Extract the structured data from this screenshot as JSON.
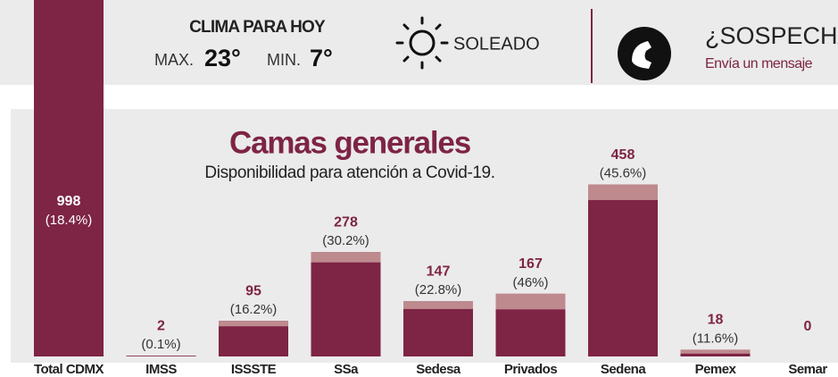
{
  "header": {
    "weather_title": "CLIMA PARA HOY",
    "max_label": "MAX.",
    "max_value": "23°",
    "min_label": "MIN.",
    "min_value": "7°",
    "condition": "SOLEADO",
    "promo_title": "¿SOSPECHA",
    "promo_text": "Envía un mensaje"
  },
  "chart_data": {
    "type": "bar",
    "title": "Camas generales",
    "subtitle": "Disponibilidad para atención a Covid-19.",
    "categories": [
      "Total CDMX",
      "IMSS",
      "ISSSTE",
      "SSa",
      "Sedesa",
      "Privados",
      "Sedena",
      "Pemex",
      "Semar"
    ],
    "values": [
      998,
      2,
      95,
      278,
      147,
      167,
      458,
      18,
      0
    ],
    "percent": [
      18.4,
      0.1,
      16.2,
      30.2,
      22.8,
      46,
      45.6,
      11.6,
      null
    ],
    "value_labels": [
      "(18.4%)",
      "(0.1%)",
      "(16.2%)",
      "(30.2%)",
      "(22.8%)",
      "(46%)",
      "(45.6%)",
      "(11.6%)",
      null
    ],
    "color": "#7e2445",
    "cap_color": "#be8a8e",
    "ylim": [
      0,
      1000
    ]
  }
}
